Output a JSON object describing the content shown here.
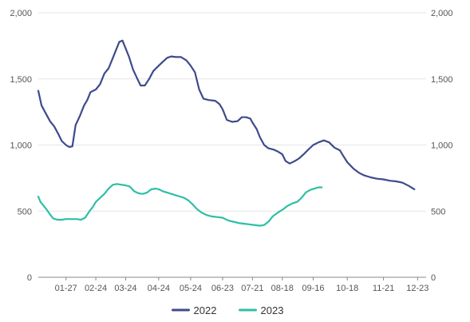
{
  "chart_data": {
    "type": "line",
    "title": "",
    "xlabel": "",
    "ylabel": "",
    "ylim": [
      0,
      2000
    ],
    "y_ticks": [
      "0",
      "500",
      "1,000",
      "1,500",
      "2,000"
    ],
    "y_tick_values": [
      0,
      500,
      1000,
      1500,
      2000
    ],
    "x_ticks": [
      "01-27",
      "02-24",
      "03-24",
      "04-24",
      "05-24",
      "06-23",
      "07-21",
      "08-18",
      "09-16",
      "10-18",
      "11-21",
      "12-23"
    ],
    "x_tick_dates": [
      "01-27",
      "02-24",
      "03-24",
      "04-24",
      "05-24",
      "06-23",
      "07-21",
      "08-18",
      "09-16",
      "10-18",
      "11-21",
      "12-23"
    ],
    "x_range": [
      "01-01",
      "12-31"
    ],
    "grid": "horizontal",
    "legend_position": "bottom",
    "dual_y_axis": true,
    "series": [
      {
        "name": "2022",
        "color": "#3f4a8c",
        "points": [
          [
            "01-01",
            1410
          ],
          [
            "01-04",
            1300
          ],
          [
            "01-08",
            1240
          ],
          [
            "01-12",
            1180
          ],
          [
            "01-16",
            1140
          ],
          [
            "01-20",
            1080
          ],
          [
            "01-23",
            1030
          ],
          [
            "01-27",
            1000
          ],
          [
            "01-30",
            985
          ],
          [
            "02-02",
            990
          ],
          [
            "02-05",
            1150
          ],
          [
            "02-09",
            1220
          ],
          [
            "02-13",
            1300
          ],
          [
            "02-16",
            1340
          ],
          [
            "02-19",
            1400
          ],
          [
            "02-24",
            1420
          ],
          [
            "02-28",
            1460
          ],
          [
            "03-04",
            1540
          ],
          [
            "03-08",
            1580
          ],
          [
            "03-12",
            1660
          ],
          [
            "03-15",
            1720
          ],
          [
            "03-18",
            1780
          ],
          [
            "03-21",
            1790
          ],
          [
            "03-24",
            1730
          ],
          [
            "03-27",
            1670
          ],
          [
            "03-31",
            1570
          ],
          [
            "04-04",
            1500
          ],
          [
            "04-07",
            1450
          ],
          [
            "04-11",
            1450
          ],
          [
            "04-15",
            1500
          ],
          [
            "04-19",
            1560
          ],
          [
            "04-24",
            1600
          ],
          [
            "04-28",
            1630
          ],
          [
            "05-02",
            1660
          ],
          [
            "05-06",
            1670
          ],
          [
            "05-10",
            1665
          ],
          [
            "05-15",
            1665
          ],
          [
            "05-20",
            1640
          ],
          [
            "05-24",
            1600
          ],
          [
            "05-28",
            1550
          ],
          [
            "06-01",
            1420
          ],
          [
            "06-05",
            1350
          ],
          [
            "06-10",
            1340
          ],
          [
            "06-16",
            1335
          ],
          [
            "06-20",
            1310
          ],
          [
            "06-23",
            1270
          ],
          [
            "06-27",
            1190
          ],
          [
            "07-02",
            1175
          ],
          [
            "07-07",
            1180
          ],
          [
            "07-11",
            1210
          ],
          [
            "07-15",
            1210
          ],
          [
            "07-19",
            1200
          ],
          [
            "07-21",
            1170
          ],
          [
            "07-25",
            1120
          ],
          [
            "07-28",
            1060
          ],
          [
            "08-01",
            1000
          ],
          [
            "08-05",
            975
          ],
          [
            "08-10",
            965
          ],
          [
            "08-14",
            950
          ],
          [
            "08-18",
            930
          ],
          [
            "08-21",
            880
          ],
          [
            "08-25",
            860
          ],
          [
            "08-30",
            880
          ],
          [
            "09-03",
            900
          ],
          [
            "09-07",
            930
          ],
          [
            "09-12",
            970
          ],
          [
            "09-16",
            1000
          ],
          [
            "09-21",
            1020
          ],
          [
            "09-26",
            1035
          ],
          [
            "10-01",
            1020
          ],
          [
            "10-06",
            980
          ],
          [
            "10-11",
            960
          ],
          [
            "10-14",
            920
          ],
          [
            "10-18",
            870
          ],
          [
            "10-24",
            820
          ],
          [
            "10-29",
            790
          ],
          [
            "11-03",
            770
          ],
          [
            "11-09",
            755
          ],
          [
            "11-15",
            745
          ],
          [
            "11-21",
            740
          ],
          [
            "11-27",
            730
          ],
          [
            "12-03",
            725
          ],
          [
            "12-09",
            715
          ],
          [
            "12-15",
            690
          ],
          [
            "12-20",
            665
          ]
        ]
      },
      {
        "name": "2023",
        "color": "#2ebfa5",
        "points": [
          [
            "01-01",
            610
          ],
          [
            "01-03",
            570
          ],
          [
            "01-06",
            540
          ],
          [
            "01-09",
            510
          ],
          [
            "01-12",
            475
          ],
          [
            "01-15",
            445
          ],
          [
            "01-19",
            435
          ],
          [
            "01-23",
            435
          ],
          [
            "01-27",
            440
          ],
          [
            "02-01",
            440
          ],
          [
            "02-06",
            440
          ],
          [
            "02-10",
            435
          ],
          [
            "02-14",
            450
          ],
          [
            "02-18",
            500
          ],
          [
            "02-21",
            530
          ],
          [
            "02-24",
            570
          ],
          [
            "02-28",
            600
          ],
          [
            "03-04",
            630
          ],
          [
            "03-08",
            670
          ],
          [
            "03-12",
            700
          ],
          [
            "03-16",
            705
          ],
          [
            "03-20",
            700
          ],
          [
            "03-24",
            695
          ],
          [
            "03-28",
            685
          ],
          [
            "04-01",
            650
          ],
          [
            "04-05",
            635
          ],
          [
            "04-09",
            630
          ],
          [
            "04-13",
            640
          ],
          [
            "04-17",
            665
          ],
          [
            "04-21",
            670
          ],
          [
            "04-24",
            665
          ],
          [
            "04-28",
            650
          ],
          [
            "05-02",
            640
          ],
          [
            "05-06",
            630
          ],
          [
            "05-10",
            620
          ],
          [
            "05-14",
            610
          ],
          [
            "05-18",
            600
          ],
          [
            "05-22",
            580
          ],
          [
            "05-26",
            550
          ],
          [
            "05-30",
            515
          ],
          [
            "06-03",
            490
          ],
          [
            "06-08",
            470
          ],
          [
            "06-13",
            460
          ],
          [
            "06-18",
            455
          ],
          [
            "06-23",
            450
          ],
          [
            "06-28",
            430
          ],
          [
            "07-03",
            420
          ],
          [
            "07-08",
            410
          ],
          [
            "07-13",
            405
          ],
          [
            "07-18",
            400
          ],
          [
            "07-23",
            395
          ],
          [
            "07-28",
            390
          ],
          [
            "08-01",
            395
          ],
          [
            "08-05",
            420
          ],
          [
            "08-09",
            460
          ],
          [
            "08-14",
            490
          ],
          [
            "08-18",
            510
          ],
          [
            "08-23",
            540
          ],
          [
            "08-28",
            560
          ],
          [
            "09-01",
            570
          ],
          [
            "09-05",
            600
          ],
          [
            "09-09",
            640
          ],
          [
            "09-13",
            660
          ],
          [
            "09-17",
            670
          ],
          [
            "09-21",
            680
          ],
          [
            "09-24",
            680
          ]
        ]
      }
    ]
  }
}
